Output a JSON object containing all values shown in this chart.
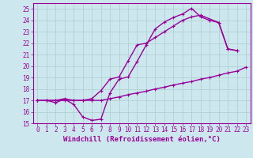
{
  "line1_x": [
    0,
    1,
    2,
    3,
    4,
    5,
    6,
    7,
    8,
    9,
    10,
    11,
    12,
    13,
    14,
    15,
    16,
    17,
    18,
    19,
    20,
    21,
    22,
    23
  ],
  "line1_y": [
    17.0,
    17.0,
    17.0,
    17.0,
    17.0,
    17.0,
    17.0,
    17.0,
    17.15,
    17.3,
    17.5,
    17.65,
    17.8,
    18.0,
    18.15,
    18.35,
    18.5,
    18.65,
    18.85,
    19.0,
    19.2,
    19.4,
    19.55,
    19.9
  ],
  "line2_x": [
    0,
    1,
    2,
    3,
    4,
    5,
    6,
    7,
    8,
    9,
    10,
    11,
    12,
    13,
    14,
    15,
    16,
    17,
    18,
    19,
    20,
    21,
    22
  ],
  "line2_y": [
    17.0,
    17.0,
    16.8,
    17.1,
    16.65,
    15.55,
    15.25,
    15.35,
    17.65,
    18.85,
    19.05,
    20.4,
    21.85,
    23.25,
    23.85,
    24.25,
    24.55,
    25.05,
    24.3,
    24.0,
    23.8,
    21.5,
    21.35
  ],
  "line3_x": [
    0,
    1,
    2,
    3,
    4,
    5,
    6,
    7,
    8,
    9,
    10,
    11,
    12,
    13,
    14,
    15,
    16,
    17,
    18,
    20,
    21,
    22
  ],
  "line3_y": [
    17.0,
    17.0,
    17.0,
    17.15,
    17.0,
    17.0,
    17.15,
    17.85,
    18.85,
    19.05,
    20.45,
    21.85,
    22.0,
    22.5,
    23.0,
    23.5,
    24.0,
    24.3,
    24.45,
    23.8,
    21.5,
    21.35
  ],
  "color": "#990099",
  "bg_color": "#cce8ee",
  "grid_color": "#aacccc",
  "xlabel": "Windchill (Refroidissement éolien,°C)",
  "xlim": [
    -0.5,
    23.5
  ],
  "ylim": [
    15,
    25.5
  ],
  "yticks": [
    15,
    16,
    17,
    18,
    19,
    20,
    21,
    22,
    23,
    24,
    25
  ],
  "xticks": [
    0,
    1,
    2,
    3,
    4,
    5,
    6,
    7,
    8,
    9,
    10,
    11,
    12,
    13,
    14,
    15,
    16,
    17,
    18,
    19,
    20,
    21,
    22,
    23
  ],
  "markersize": 2.5,
  "linewidth": 1.0,
  "xlabel_fontsize": 6.5,
  "tick_fontsize": 5.5,
  "font_family": "monospace"
}
